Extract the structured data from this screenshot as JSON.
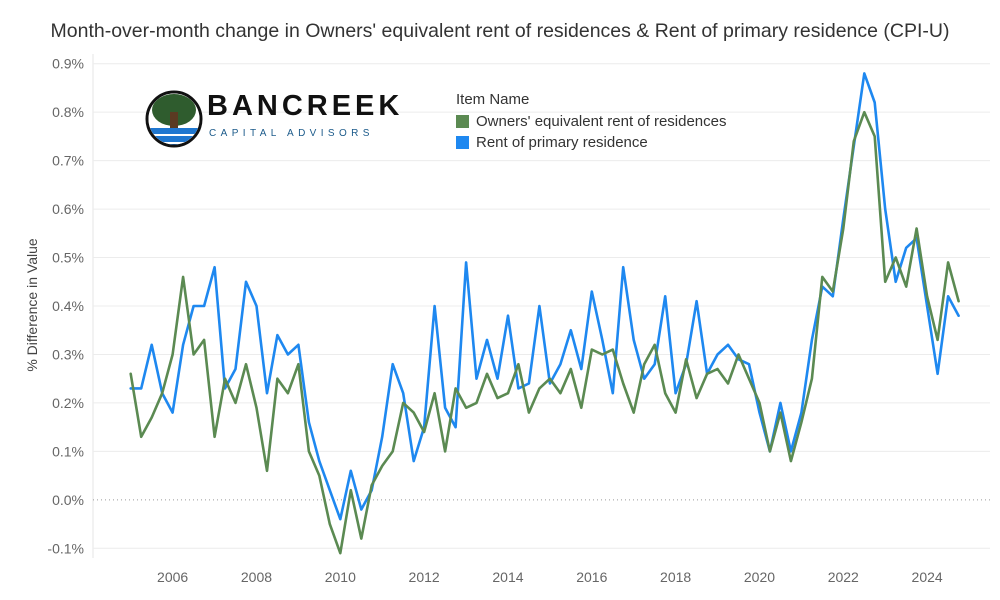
{
  "chart_data": {
    "type": "line",
    "title": "Month-over-month change in Owners' equivalent rent of residences & Rent of primary residence (CPI-U)",
    "ylabel": "% Difference in Value",
    "xlabel": "",
    "ylim": [
      -0.12,
      0.92
    ],
    "xlim": [
      2004.1,
      2025.5
    ],
    "y_ticks": [
      -0.1,
      0.0,
      0.1,
      0.2,
      0.3,
      0.4,
      0.5,
      0.6,
      0.7,
      0.8,
      0.9
    ],
    "y_tick_labels": [
      "-0.1%",
      "0.0%",
      "0.1%",
      "0.2%",
      "0.3%",
      "0.4%",
      "0.5%",
      "0.6%",
      "0.7%",
      "0.8%",
      "0.9%"
    ],
    "x_ticks": [
      2006,
      2008,
      2010,
      2012,
      2014,
      2016,
      2018,
      2020,
      2022,
      2024
    ],
    "x_tick_labels": [
      "2006",
      "2008",
      "2010",
      "2012",
      "2014",
      "2016",
      "2018",
      "2020",
      "2022",
      "2024"
    ],
    "grid": "horizontal",
    "legend": {
      "title": "Item Name",
      "placement": "top-center"
    },
    "series": [
      {
        "name": "Owners' equivalent rent of residences",
        "color": "#5b8a52",
        "x": [
          2005.0,
          2005.25,
          2005.5,
          2005.75,
          2006.0,
          2006.25,
          2006.5,
          2006.75,
          2007.0,
          2007.25,
          2007.5,
          2007.75,
          2008.0,
          2008.25,
          2008.5,
          2008.75,
          2009.0,
          2009.25,
          2009.5,
          2009.75,
          2010.0,
          2010.25,
          2010.5,
          2010.75,
          2011.0,
          2011.25,
          2011.5,
          2011.75,
          2012.0,
          2012.25,
          2012.5,
          2012.75,
          2013.0,
          2013.25,
          2013.5,
          2013.75,
          2014.0,
          2014.25,
          2014.5,
          2014.75,
          2015.0,
          2015.25,
          2015.5,
          2015.75,
          2016.0,
          2016.25,
          2016.5,
          2016.75,
          2017.0,
          2017.25,
          2017.5,
          2017.75,
          2018.0,
          2018.25,
          2018.5,
          2018.75,
          2019.0,
          2019.25,
          2019.5,
          2019.75,
          2020.0,
          2020.25,
          2020.5,
          2020.75,
          2021.0,
          2021.25,
          2021.5,
          2021.75,
          2022.0,
          2022.25,
          2022.5,
          2022.75,
          2023.0,
          2023.25,
          2023.5,
          2023.75,
          2024.0,
          2024.25,
          2024.5,
          2024.75
        ],
        "values": [
          0.26,
          0.13,
          0.17,
          0.22,
          0.3,
          0.46,
          0.3,
          0.33,
          0.13,
          0.25,
          0.2,
          0.28,
          0.19,
          0.06,
          0.25,
          0.22,
          0.28,
          0.1,
          0.05,
          -0.05,
          -0.11,
          0.02,
          -0.08,
          0.03,
          0.07,
          0.1,
          0.2,
          0.18,
          0.14,
          0.22,
          0.1,
          0.23,
          0.19,
          0.2,
          0.26,
          0.21,
          0.22,
          0.28,
          0.18,
          0.23,
          0.25,
          0.22,
          0.27,
          0.19,
          0.31,
          0.3,
          0.31,
          0.24,
          0.18,
          0.28,
          0.32,
          0.22,
          0.18,
          0.29,
          0.21,
          0.26,
          0.27,
          0.24,
          0.3,
          0.25,
          0.2,
          0.1,
          0.18,
          0.08,
          0.16,
          0.25,
          0.46,
          0.43,
          0.56,
          0.74,
          0.8,
          0.75,
          0.45,
          0.5,
          0.44,
          0.56,
          0.42,
          0.33,
          0.49,
          0.41
        ]
      },
      {
        "name": "Rent of primary residence",
        "color": "#1e88f0",
        "x": [
          2005.0,
          2005.25,
          2005.5,
          2005.75,
          2006.0,
          2006.25,
          2006.5,
          2006.75,
          2007.0,
          2007.25,
          2007.5,
          2007.75,
          2008.0,
          2008.25,
          2008.5,
          2008.75,
          2009.0,
          2009.25,
          2009.5,
          2009.75,
          2010.0,
          2010.25,
          2010.5,
          2010.75,
          2011.0,
          2011.25,
          2011.5,
          2011.75,
          2012.0,
          2012.25,
          2012.5,
          2012.75,
          2013.0,
          2013.25,
          2013.5,
          2013.75,
          2014.0,
          2014.25,
          2014.5,
          2014.75,
          2015.0,
          2015.25,
          2015.5,
          2015.75,
          2016.0,
          2016.25,
          2016.5,
          2016.75,
          2017.0,
          2017.25,
          2017.5,
          2017.75,
          2018.0,
          2018.25,
          2018.5,
          2018.75,
          2019.0,
          2019.25,
          2019.5,
          2019.75,
          2020.0,
          2020.25,
          2020.5,
          2020.75,
          2021.0,
          2021.25,
          2021.5,
          2021.75,
          2022.0,
          2022.25,
          2022.5,
          2022.75,
          2023.0,
          2023.25,
          2023.5,
          2023.75,
          2024.0,
          2024.25,
          2024.5,
          2024.75
        ],
        "values": [
          0.23,
          0.23,
          0.32,
          0.22,
          0.18,
          0.32,
          0.4,
          0.4,
          0.48,
          0.23,
          0.27,
          0.45,
          0.4,
          0.22,
          0.34,
          0.3,
          0.32,
          0.16,
          0.08,
          0.02,
          -0.04,
          0.06,
          -0.02,
          0.02,
          0.13,
          0.28,
          0.22,
          0.08,
          0.15,
          0.4,
          0.19,
          0.15,
          0.49,
          0.25,
          0.33,
          0.25,
          0.38,
          0.23,
          0.24,
          0.4,
          0.24,
          0.28,
          0.35,
          0.27,
          0.43,
          0.33,
          0.22,
          0.48,
          0.33,
          0.25,
          0.28,
          0.42,
          0.22,
          0.28,
          0.41,
          0.26,
          0.3,
          0.32,
          0.29,
          0.28,
          0.18,
          0.1,
          0.2,
          0.1,
          0.18,
          0.33,
          0.44,
          0.42,
          0.58,
          0.73,
          0.88,
          0.82,
          0.6,
          0.45,
          0.52,
          0.54,
          0.4,
          0.26,
          0.42,
          0.38
        ]
      }
    ]
  },
  "logo": {
    "name": "BANCREEK",
    "tagline": "CAPITAL ADVISORS",
    "colors": {
      "tree": "#2f5c2e",
      "water": "#1f77d0",
      "ring": "#111111"
    }
  }
}
